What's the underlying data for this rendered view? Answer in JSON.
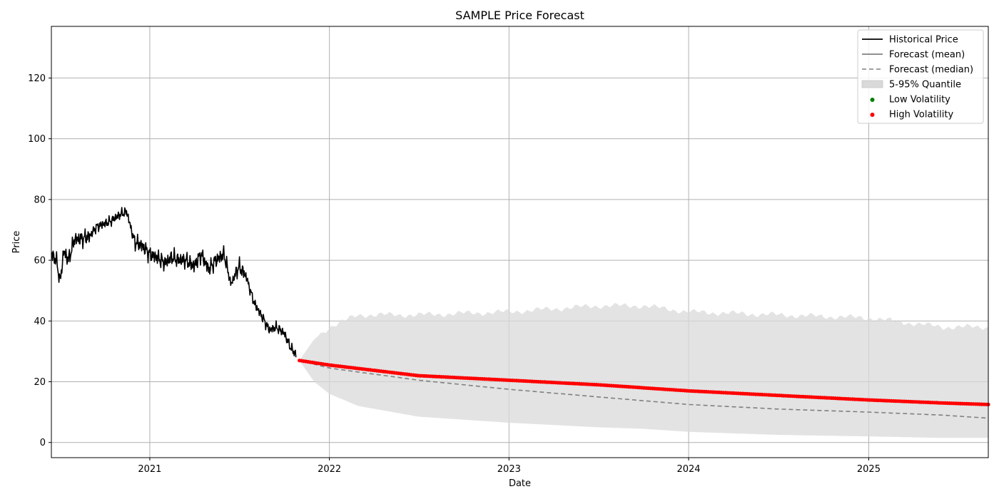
{
  "chart_data": {
    "type": "line",
    "title": "SAMPLE Price Forecast",
    "xlabel": "Date",
    "ylabel": "Price",
    "xlim": [
      "2020-06-15",
      "2025-09-01"
    ],
    "ylim": [
      -5,
      137
    ],
    "x_ticks": [
      "2021",
      "2022",
      "2023",
      "2024",
      "2025"
    ],
    "y_ticks": [
      0,
      20,
      40,
      60,
      80,
      100,
      120
    ],
    "grid": true,
    "legend_position": "top-right",
    "legend": [
      {
        "label": "Historical Price",
        "kind": "line",
        "color": "#000000"
      },
      {
        "label": "Forecast (mean)",
        "kind": "line",
        "color": "#808080"
      },
      {
        "label": "Forecast (median)",
        "kind": "dashed",
        "color": "#808080"
      },
      {
        "label": "5-95% Quantile",
        "kind": "patch",
        "color": "#d9d9d9"
      },
      {
        "label": "Low Volatility",
        "kind": "dot",
        "color": "#008000"
      },
      {
        "label": "High Volatility",
        "kind": "dot",
        "color": "#ff0000"
      }
    ],
    "colors": {
      "historical": "#000000",
      "forecast_mean": "#808080",
      "forecast_median": "#808080",
      "quantile_band": "#d9d9d9",
      "low_volatility": "#008000",
      "high_volatility": "#ff0000"
    },
    "series": [
      {
        "name": "Historical Price",
        "x": [
          "2020-06-15",
          "2020-06-25",
          "2020-07-03",
          "2020-07-10",
          "2020-07-20",
          "2020-08-01",
          "2020-08-15",
          "2020-09-01",
          "2020-09-15",
          "2020-10-01",
          "2020-10-15",
          "2020-11-01",
          "2020-11-15",
          "2020-12-01",
          "2020-12-15",
          "2021-01-01",
          "2021-01-15",
          "2021-02-01",
          "2021-02-15",
          "2021-03-01",
          "2021-03-15",
          "2021-04-01",
          "2021-04-15",
          "2021-05-01",
          "2021-05-15",
          "2021-06-01",
          "2021-06-15",
          "2021-07-01",
          "2021-07-15",
          "2021-08-01",
          "2021-08-15",
          "2021-09-01",
          "2021-09-15",
          "2021-10-01",
          "2021-10-15",
          "2021-10-25"
        ],
        "values": [
          62,
          60,
          53,
          63,
          60,
          67,
          67,
          68,
          71,
          72,
          73,
          75,
          76,
          66,
          65,
          62,
          61,
          59,
          61,
          60,
          60,
          58,
          62,
          57,
          60,
          62,
          52,
          58,
          55,
          46,
          42,
          37,
          38,
          36,
          31,
          29
        ]
      },
      {
        "name": "Forecast (mean)",
        "x": [
          "2021-11-01",
          "2022-01-01",
          "2022-07-01",
          "2023-01-01",
          "2023-07-01",
          "2024-01-01",
          "2024-07-01",
          "2025-01-01",
          "2025-06-01",
          "2025-09-01"
        ],
        "values": [
          27,
          25.5,
          22,
          20.5,
          19,
          17,
          15.5,
          14,
          13,
          12.5
        ]
      },
      {
        "name": "Forecast (median)",
        "x": [
          "2021-11-01",
          "2022-01-01",
          "2022-07-01",
          "2023-01-01",
          "2023-07-01",
          "2024-01-01",
          "2024-07-01",
          "2025-01-01",
          "2025-06-01",
          "2025-09-01"
        ],
        "values": [
          27,
          24.5,
          20.5,
          17.5,
          15,
          12.5,
          11,
          10,
          9,
          8
        ]
      },
      {
        "name": "5-95% Quantile",
        "x": [
          "2021-11-01",
          "2021-12-01",
          "2022-01-01",
          "2022-03-01",
          "2022-07-01",
          "2023-01-01",
          "2023-07-01",
          "2023-10-01",
          "2024-01-01",
          "2024-07-01",
          "2025-01-01",
          "2025-06-01",
          "2025-09-01"
        ],
        "upper": [
          27,
          34,
          38,
          42,
          42,
          43,
          45,
          45,
          43,
          42,
          41,
          38,
          38
        ],
        "lower": [
          27,
          20,
          16,
          12,
          8.5,
          6.5,
          5,
          4.5,
          3.5,
          2.5,
          2,
          1.5,
          1.5
        ]
      }
    ]
  }
}
